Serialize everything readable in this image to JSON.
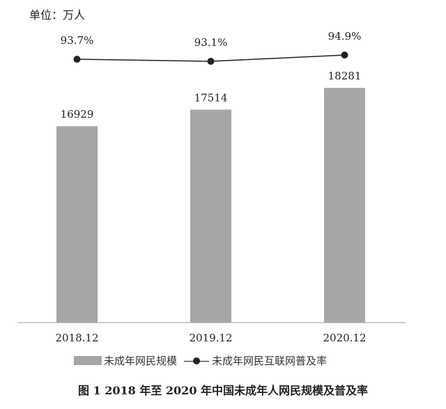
{
  "chart_data": {
    "type": "bar",
    "title": "图 1   2018 年至 2020 年中国未成年人网民规模及普及率",
    "unit_label": "单位：万人",
    "categories": [
      "2018.12",
      "2019.12",
      "2020.12"
    ],
    "series": [
      {
        "name": "未成年网民规模",
        "type": "bar",
        "values": [
          16929,
          17514,
          18281
        ],
        "labels": [
          "16929",
          "17514",
          "18281"
        ],
        "color": "#a6a6a6"
      },
      {
        "name": "未成年网民互联网普及率",
        "type": "line",
        "values": [
          93.7,
          93.1,
          94.9
        ],
        "labels": [
          "93.7%",
          "93.1%",
          "94.9%"
        ],
        "color": "#222222"
      }
    ],
    "ylim": [
      10000,
      20400
    ],
    "grid": false,
    "legend_position": "bottom"
  }
}
